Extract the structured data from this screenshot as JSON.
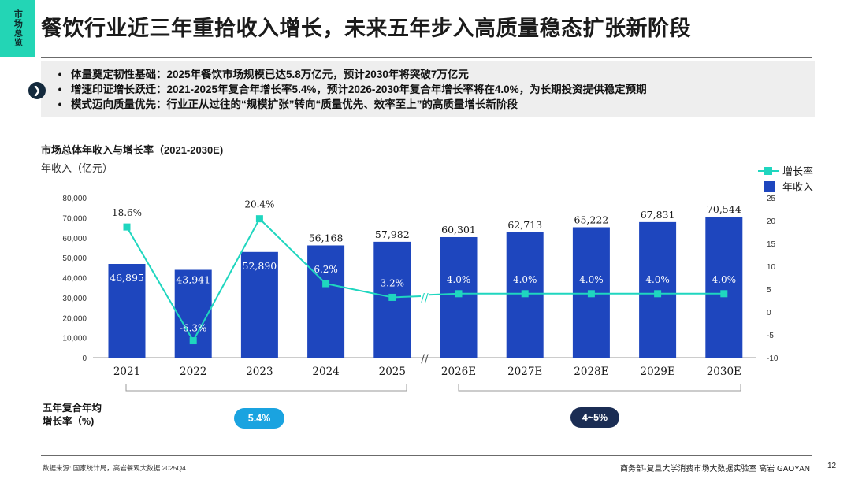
{
  "side_tab": {
    "label": "市场总览"
  },
  "title": "餐饮行业近三年重拾收入增长，未来五年步入高质量稳态扩张新阶段",
  "summary": {
    "bullet": "•",
    "items": [
      "体量奠定韧性基础：2025年餐饮市场规模已达5.8万亿元，预计2030年将突破7万亿元",
      "增速印证增长跃迁：2021-2025年复合年增长率5.4%，预计2026-2030年复合年增长率将在4.0%，为长期投资提供稳定预期",
      "模式迈向质量优先：行业正从过往的“规模扩张”转向“质量优先、效率至上”的高质量增长新阶段"
    ]
  },
  "chart_section_title": "市场总体年收入与增长率（2021-2030E)",
  "chart_data": {
    "type": "bar+line",
    "ylabel": "年收入（亿元）",
    "categories": [
      "2021",
      "2022",
      "2023",
      "2024",
      "2025",
      "2026E",
      "2027E",
      "2028E",
      "2029E",
      "2030E"
    ],
    "series": [
      {
        "name": "年收入",
        "type": "bar",
        "axis": "left",
        "color": "#1e46be",
        "values": [
          46895,
          43941,
          52890,
          56168,
          57982,
          60301,
          62713,
          65222,
          67831,
          70544
        ],
        "labels": [
          "46,895",
          "43,941",
          "52,890",
          "56,168",
          "57,982",
          "60,301",
          "62,713",
          "65,222",
          "67,831",
          "70,544"
        ]
      },
      {
        "name": "增长率",
        "type": "line",
        "axis": "right",
        "color": "#1fd6bf",
        "values": [
          18.6,
          -6.3,
          20.4,
          6.2,
          3.2,
          4.0,
          4.0,
          4.0,
          4.0,
          4.0
        ],
        "labels": [
          "18.6%",
          "-6.3%",
          "20.4%",
          "6.2%",
          "3.2%",
          "4.0%",
          "4.0%",
          "4.0%",
          "4.0%",
          "4.0%"
        ]
      }
    ],
    "left_axis": {
      "range": [
        0,
        80000
      ],
      "ticks": [
        "0",
        "10,000",
        "20,000",
        "30,000",
        "40,000",
        "50,000",
        "60,000",
        "70,000",
        "80,000"
      ]
    },
    "right_axis": {
      "range": [
        -10,
        25
      ],
      "ticks": [
        "-10",
        "-5",
        "0",
        "5",
        "10",
        "15",
        "20",
        "25"
      ]
    },
    "legend": {
      "position": "top-right",
      "items": [
        "增长率",
        "年收入"
      ]
    },
    "axis_break_marker": "//"
  },
  "cagr": {
    "label_line1": "五年复合年均",
    "label_line2": "增长率（%)",
    "historical": "5.4%",
    "forecast": "4~5%"
  },
  "footer": {
    "source": "数据来源: 国家统计局，高岩餐观大数据 2025Q4",
    "credit": "商务部-复旦大学消费市场大数据实验室   高岩 GAOYAN",
    "page": "12"
  },
  "colors": {
    "accent": "#23d5b5",
    "bar": "#1e46be",
    "line": "#1fd6bf",
    "pill_hist": "#1aa3e0",
    "pill_fore": "#1b2d54"
  }
}
